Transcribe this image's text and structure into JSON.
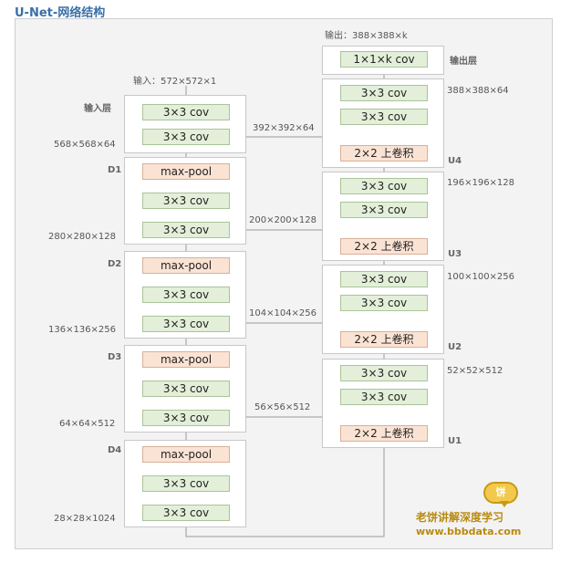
{
  "title": "U-Net-网络结构",
  "input_label": "输入：572×572×1",
  "output_label": "输出：388×388×k",
  "side_labels": {
    "input_layer": "输入层",
    "output_layer": "输出层",
    "d1": "D1",
    "d2": "D2",
    "d3": "D3",
    "d4": "D4",
    "u1": "U1",
    "u2": "U2",
    "u3": "U3",
    "u4": "U4"
  },
  "left_dims": [
    "568×568×64",
    "280×280×128",
    "136×136×256",
    "64×64×512",
    "28×28×1024"
  ],
  "skip_dims": [
    "392×392×64",
    "200×200×128",
    "104×104×256",
    "56×56×512"
  ],
  "right_dims": [
    "388×388×64",
    "196×196×128",
    "100×100×256",
    "52×52×512"
  ],
  "boxes": {
    "conv": "3×3 cov",
    "pool": "max-pool",
    "upconv": "2×2 上卷积",
    "final": "1×1×k cov"
  },
  "plus_symbol": "+",
  "logo": {
    "badge": "饼",
    "name": "老饼讲解深度学习",
    "url": "www.bbbdata.com"
  },
  "colors": {
    "conv_fill": "#e3efd9",
    "pool_fill": "#fbe3d4",
    "line": "#9a9a9a",
    "title": "#3a6fa8",
    "logo": "#b98a10"
  }
}
